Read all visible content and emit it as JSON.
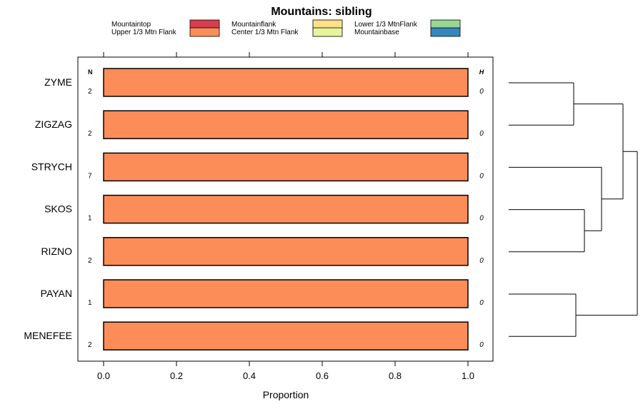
{
  "chart_data": {
    "type": "bar",
    "orientation": "horizontal",
    "stacked": true,
    "title": "Mountains: sibling",
    "xlabel": "Proportion",
    "xlim": [
      -0.07,
      1.07
    ],
    "xticks": [
      "0.0",
      "0.2",
      "0.4",
      "0.6",
      "0.8",
      "1.0"
    ],
    "xtick_values": [
      0,
      0.2,
      0.4,
      0.6,
      0.8,
      1.0
    ],
    "n_header": "N",
    "h_header": "H",
    "legend": [
      {
        "name": "Mountaintop",
        "color": "#d53e4f"
      },
      {
        "name": "Upper 1/3 Mtn Flank",
        "color": "#fc8d59"
      },
      {
        "name": "Mountainflank",
        "color": "#fee08b"
      },
      {
        "name": "Center 1/3 Mtn Flank",
        "color": "#e6f598"
      },
      {
        "name": "Lower 1/3 MtnFlank",
        "color": "#99d594"
      },
      {
        "name": "Mountainbase",
        "color": "#3288bd"
      }
    ],
    "categories": [
      "ZYME",
      "ZIGZAG",
      "STRYCH",
      "SKOS",
      "RIZNO",
      "PAYAN",
      "MENEFEE"
    ],
    "n_values": [
      "2",
      "2",
      "7",
      "1",
      "2",
      "1",
      "2"
    ],
    "h_values": [
      "0",
      "0",
      "0",
      "0",
      "0",
      "0",
      "0"
    ],
    "series": [
      {
        "name": "Mountaintop",
        "values": [
          0,
          0,
          0,
          0,
          0,
          0,
          0
        ]
      },
      {
        "name": "Upper 1/3 Mtn Flank",
        "values": [
          1,
          1,
          1,
          1,
          1,
          1,
          1
        ]
      },
      {
        "name": "Mountainflank",
        "values": [
          0,
          0,
          0,
          0,
          0,
          0,
          0
        ]
      },
      {
        "name": "Center 1/3 Mtn Flank",
        "values": [
          0,
          0,
          0,
          0,
          0,
          0,
          0
        ]
      },
      {
        "name": "Lower 1/3 MtnFlank",
        "values": [
          0,
          0,
          0,
          0,
          0,
          0,
          0
        ]
      },
      {
        "name": "Mountainbase",
        "values": [
          0,
          0,
          0,
          0,
          0,
          0,
          0
        ]
      }
    ]
  }
}
